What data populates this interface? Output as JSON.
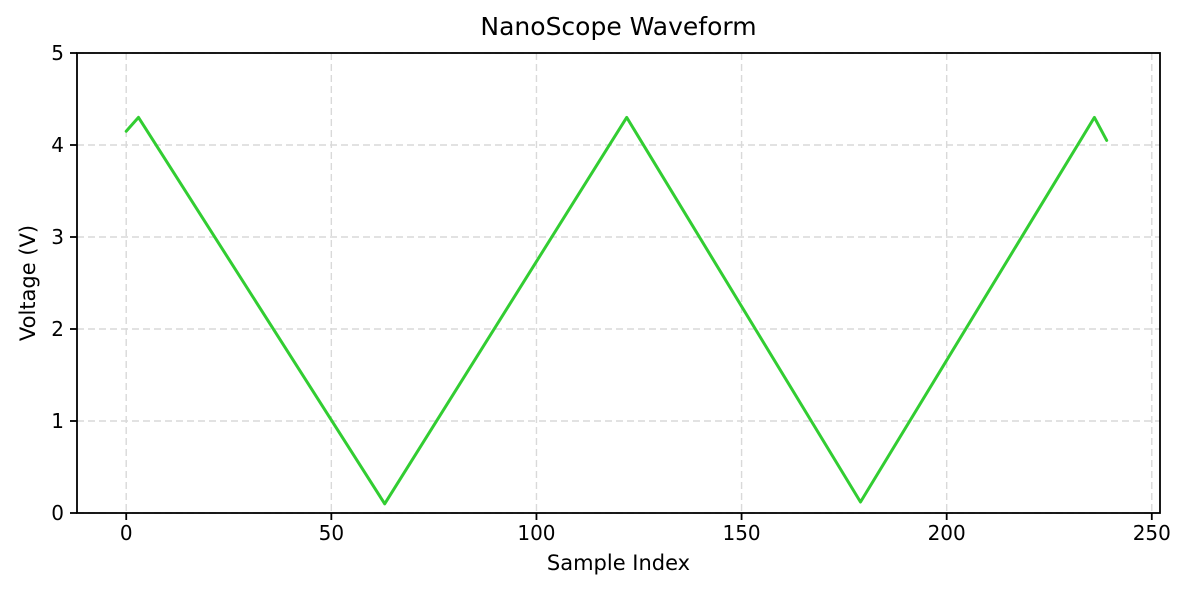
{
  "chart_data": {
    "type": "line",
    "title": "NanoScope Waveform",
    "xlabel": "Sample Index",
    "ylabel": "Voltage (V)",
    "xlim": [
      -12,
      252
    ],
    "ylim": [
      0,
      5
    ],
    "x_ticks": [
      0,
      50,
      100,
      150,
      200,
      250
    ],
    "y_ticks": [
      0,
      1,
      2,
      3,
      4,
      5
    ],
    "grid": true,
    "grid_style": "dashed",
    "legend": "none",
    "series": [
      {
        "name": "voltage-waveform",
        "shape": "triangle-wave",
        "points": [
          [
            0,
            4.15
          ],
          [
            3,
            4.3
          ],
          [
            63,
            0.1
          ],
          [
            122,
            4.3
          ],
          [
            179,
            0.12
          ],
          [
            236,
            4.3
          ],
          [
            239,
            4.05
          ]
        ]
      }
    ],
    "colors": {
      "line": "#32CD32",
      "grid": "#d9d9d9",
      "axis": "#000000",
      "text": "#000000",
      "background": "#ffffff"
    }
  }
}
